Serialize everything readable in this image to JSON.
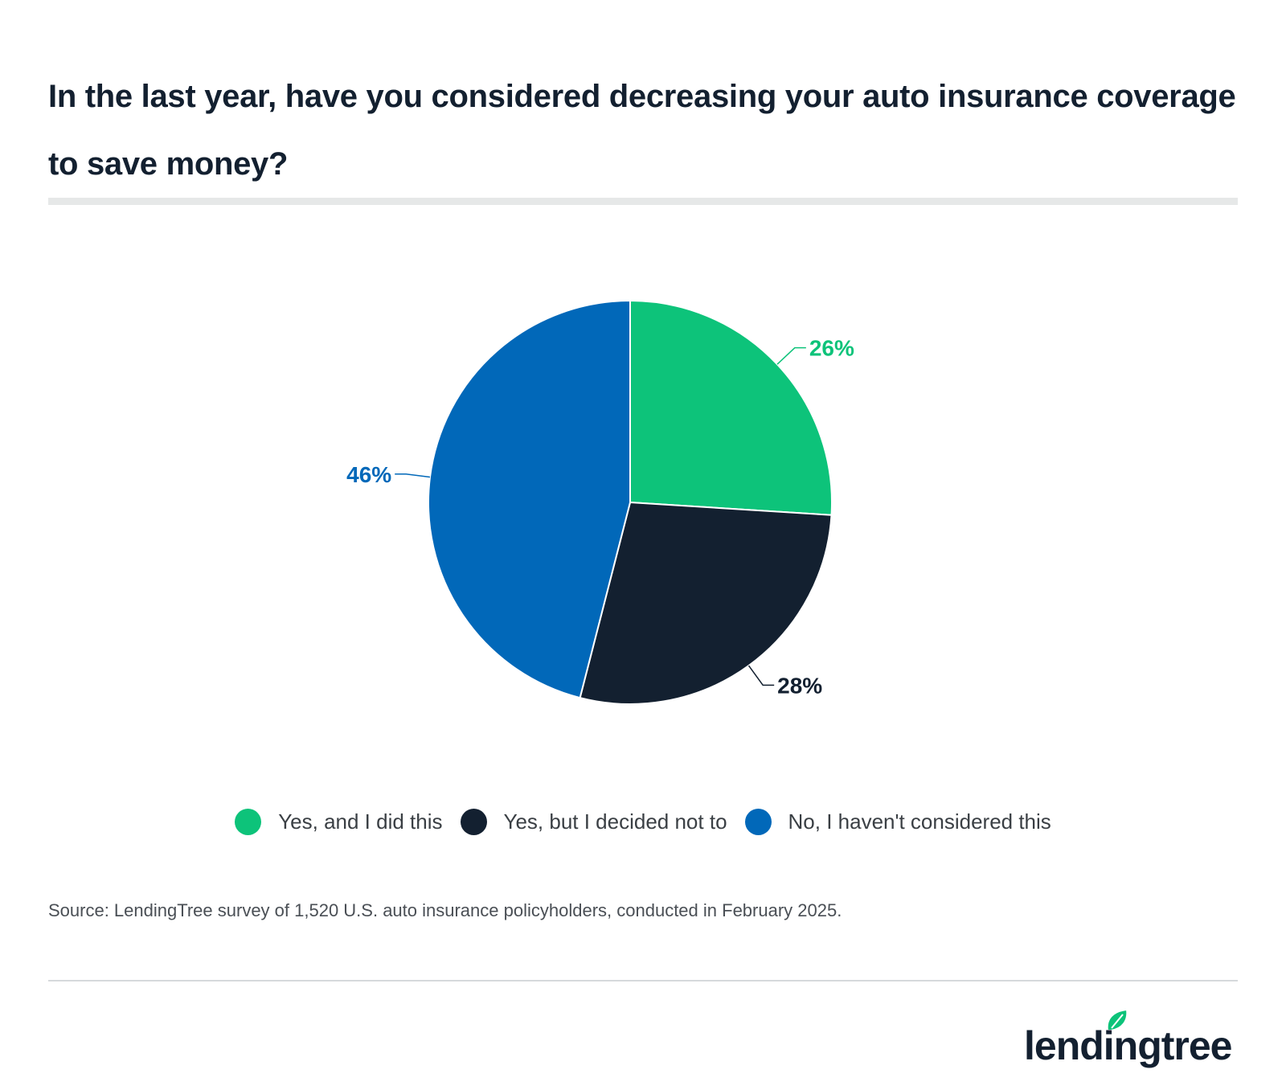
{
  "title": "In the last year, have you considered decreasing your auto insurance coverage to save money?",
  "source": "Source: LendingTree survey of 1,520 U.S. auto insurance policyholders, conducted in February 2025.",
  "brand": {
    "text": "lendingtree",
    "logo_icon": "leaf-icon"
  },
  "colors": {
    "yes_did": "#0dc37a",
    "yes_not": "#132030",
    "no": "#0168b9",
    "rule": "#e6e8e8"
  },
  "chart_data": {
    "type": "pie",
    "title": "In the last year, have you considered decreasing your auto insurance coverage to save money?",
    "slices": [
      {
        "label": "Yes, and I did this",
        "value": 26,
        "display": "26%",
        "color": "#0dc37a"
      },
      {
        "label": "Yes, but I decided not to",
        "value": 28,
        "display": "28%",
        "color": "#132030"
      },
      {
        "label": "No, I haven't considered this",
        "value": 46,
        "display": "46%",
        "color": "#0168b9"
      }
    ],
    "legend_position": "bottom"
  }
}
